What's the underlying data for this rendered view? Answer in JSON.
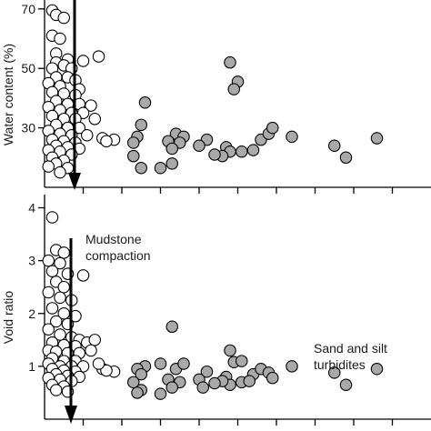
{
  "chart_data": [
    {
      "type": "scatter",
      "ylabel": "Water content (%)",
      "xlabel": "",
      "ylim": [
        10,
        73
      ],
      "yticks": [
        30,
        50,
        70
      ],
      "xlim": [
        0,
        10
      ],
      "xticks": [
        1,
        2,
        3,
        4,
        5,
        6,
        7,
        8,
        9
      ],
      "grid": false,
      "series": [
        {
          "style": "open",
          "points": [
            [
              0.2,
              69.5
            ],
            [
              0.3,
              68
            ],
            [
              0.5,
              67
            ],
            [
              0.2,
              61
            ],
            [
              0.4,
              60
            ],
            [
              0.3,
              55
            ],
            [
              0.6,
              53
            ],
            [
              0.3,
              52
            ],
            [
              0.5,
              51
            ],
            [
              0.2,
              50
            ],
            [
              0.7,
              50
            ],
            [
              1.0,
              52.5
            ],
            [
              0.3,
              47
            ],
            [
              0.6,
              47
            ],
            [
              0.8,
              46
            ],
            [
              0.1,
              45
            ],
            [
              0.4,
              44
            ],
            [
              0.9,
              43
            ],
            [
              0.2,
              42
            ],
            [
              0.5,
              41.5
            ],
            [
              0.8,
              41
            ],
            [
              0.3,
              39
            ],
            [
              0.6,
              38
            ],
            [
              0.9,
              38
            ],
            [
              1.2,
              37.5
            ],
            [
              0.1,
              37
            ],
            [
              0.4,
              36
            ],
            [
              0.7,
              35
            ],
            [
              1.0,
              35
            ],
            [
              0.2,
              34
            ],
            [
              0.5,
              33
            ],
            [
              0.8,
              33
            ],
            [
              1.3,
              33
            ],
            [
              0.3,
              31
            ],
            [
              0.6,
              30
            ],
            [
              0.9,
              30
            ],
            [
              0.1,
              29
            ],
            [
              0.4,
              28
            ],
            [
              0.7,
              27.5
            ],
            [
              1.1,
              27.5
            ],
            [
              0.2,
              26
            ],
            [
              0.5,
              25.5
            ],
            [
              0.8,
              25
            ],
            [
              0.3,
              24
            ],
            [
              0.6,
              23.5
            ],
            [
              0.9,
              23
            ],
            [
              0.1,
              22.5
            ],
            [
              0.4,
              22
            ],
            [
              0.7,
              21
            ],
            [
              0.2,
              20
            ],
            [
              0.5,
              19
            ],
            [
              0.3,
              18
            ],
            [
              0.1,
              17
            ],
            [
              0.6,
              16.5
            ],
            [
              0.4,
              15
            ],
            [
              1.5,
              26.5
            ],
            [
              1.8,
              26
            ],
            [
              1.6,
              25.5
            ],
            [
              1.4,
              54
            ]
          ]
        },
        {
          "style": "filled",
          "points": [
            [
              2.6,
              38.5
            ],
            [
              2.5,
              31
            ],
            [
              3.4,
              28
            ],
            [
              2.4,
              27
            ],
            [
              3.6,
              27
            ],
            [
              2.3,
              25
            ],
            [
              3.2,
              25.5
            ],
            [
              3.5,
              25
            ],
            [
              4.2,
              26
            ],
            [
              3.3,
              23
            ],
            [
              4.0,
              24
            ],
            [
              4.7,
              23.5
            ],
            [
              4.8,
              22
            ],
            [
              5.1,
              22
            ],
            [
              5.4,
              22.5
            ],
            [
              5.6,
              26
            ],
            [
              5.8,
              28
            ],
            [
              5.9,
              30
            ],
            [
              4.6,
              20.5
            ],
            [
              2.3,
              20.5
            ],
            [
              3.3,
              18
            ],
            [
              2.5,
              16.5
            ],
            [
              3.0,
              16.5
            ],
            [
              4.8,
              52
            ],
            [
              5.0,
              45.5
            ],
            [
              4.9,
              43
            ],
            [
              6.4,
              27
            ],
            [
              7.5,
              24
            ],
            [
              7.8,
              20
            ],
            [
              8.6,
              26.5
            ],
            [
              4.4,
              21
            ]
          ]
        }
      ]
    },
    {
      "type": "scatter",
      "ylabel": "Void ratio",
      "xlabel": "",
      "ylim": [
        0,
        4.25
      ],
      "yticks": [
        1,
        2,
        3,
        4
      ],
      "xlim": [
        0,
        10
      ],
      "xticks": [
        1,
        2,
        3,
        4,
        5,
        6,
        7,
        8,
        9
      ],
      "grid": false,
      "series": [
        {
          "style": "open",
          "points": [
            [
              0.2,
              3.82
            ],
            [
              0.3,
              3.2
            ],
            [
              0.5,
              3.15
            ],
            [
              0.1,
              3.0
            ],
            [
              0.4,
              2.95
            ],
            [
              0.2,
              2.8
            ],
            [
              0.6,
              2.75
            ],
            [
              1.0,
              2.72
            ],
            [
              0.3,
              2.6
            ],
            [
              0.5,
              2.5
            ],
            [
              0.1,
              2.4
            ],
            [
              0.4,
              2.3
            ],
            [
              0.7,
              2.25
            ],
            [
              0.2,
              2.1
            ],
            [
              0.5,
              2.0
            ],
            [
              0.8,
              1.95
            ],
            [
              0.3,
              1.85
            ],
            [
              0.6,
              1.8
            ],
            [
              0.1,
              1.7
            ],
            [
              0.4,
              1.6
            ],
            [
              0.7,
              1.55
            ],
            [
              0.9,
              1.5
            ],
            [
              0.2,
              1.45
            ],
            [
              0.5,
              1.4
            ],
            [
              0.8,
              1.38
            ],
            [
              1.1,
              1.45
            ],
            [
              1.3,
              1.5
            ],
            [
              0.1,
              1.3
            ],
            [
              0.3,
              1.28
            ],
            [
              0.6,
              1.25
            ],
            [
              0.9,
              1.25
            ],
            [
              1.2,
              1.3
            ],
            [
              0.2,
              1.15
            ],
            [
              0.5,
              1.1
            ],
            [
              0.8,
              1.1
            ],
            [
              0.1,
              1.05
            ],
            [
              0.4,
              1.0
            ],
            [
              0.7,
              1.0
            ],
            [
              1.0,
              1.0
            ],
            [
              0.2,
              0.95
            ],
            [
              0.5,
              0.92
            ],
            [
              0.8,
              0.9
            ],
            [
              0.3,
              0.85
            ],
            [
              0.6,
              0.82
            ],
            [
              0.9,
              0.8
            ],
            [
              0.1,
              0.78
            ],
            [
              0.4,
              0.75
            ],
            [
              0.7,
              0.72
            ],
            [
              0.2,
              0.65
            ],
            [
              0.5,
              0.62
            ],
            [
              0.3,
              0.55
            ],
            [
              0.6,
              0.52
            ],
            [
              1.5,
              0.95
            ],
            [
              1.8,
              0.9
            ],
            [
              1.6,
              0.92
            ],
            [
              1.4,
              1.05
            ]
          ]
        },
        {
          "style": "filled",
          "points": [
            [
              2.6,
              1.0
            ],
            [
              2.4,
              0.95
            ],
            [
              3.0,
              1.05
            ],
            [
              2.5,
              0.85
            ],
            [
              3.4,
              0.95
            ],
            [
              3.6,
              1.05
            ],
            [
              2.3,
              0.7
            ],
            [
              3.2,
              0.75
            ],
            [
              3.5,
              0.7
            ],
            [
              4.2,
              0.9
            ],
            [
              4.0,
              0.75
            ],
            [
              4.7,
              0.8
            ],
            [
              4.8,
              0.65
            ],
            [
              5.1,
              0.7
            ],
            [
              5.4,
              0.85
            ],
            [
              5.6,
              0.95
            ],
            [
              5.8,
              0.88
            ],
            [
              5.9,
              0.78
            ],
            [
              4.6,
              0.72
            ],
            [
              2.5,
              0.55
            ],
            [
              3.3,
              0.6
            ],
            [
              3.0,
              0.48
            ],
            [
              2.4,
              0.5
            ],
            [
              4.1,
              0.6
            ],
            [
              5.3,
              0.72
            ],
            [
              4.8,
              1.3
            ],
            [
              4.9,
              1.08
            ],
            [
              5.1,
              1.1
            ],
            [
              3.3,
              1.75
            ],
            [
              6.4,
              1.0
            ],
            [
              7.5,
              0.88
            ],
            [
              7.8,
              0.65
            ],
            [
              8.6,
              0.95
            ],
            [
              4.4,
              0.68
            ]
          ]
        }
      ],
      "annotations": [
        "Mudstone\ncompaction",
        "Sand and silt\nturbidites"
      ]
    }
  ]
}
